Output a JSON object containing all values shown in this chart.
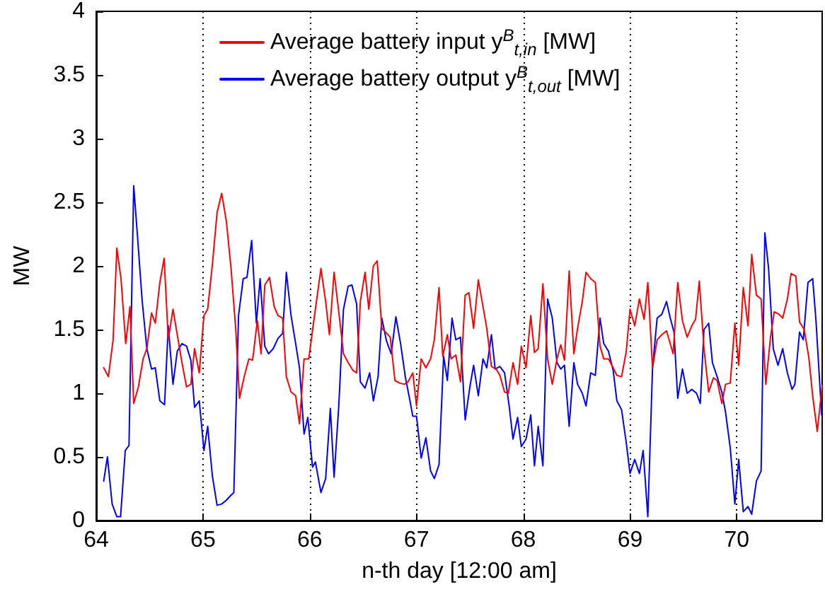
{
  "chart_data": {
    "type": "line",
    "xlabel": "n-th day [12:00 am]",
    "ylabel": "MW",
    "xlim": [
      64,
      70.8
    ],
    "ylim": [
      0,
      4
    ],
    "xticks": [
      64,
      65,
      66,
      67,
      68,
      69,
      70
    ],
    "yticks": [
      0,
      0.5,
      1,
      1.5,
      2,
      2.5,
      3,
      3.5,
      4
    ],
    "grid": "x",
    "legend": "top",
    "series": [
      {
        "name": "Average battery input y$^{B}$$_{t,in}$ [MW]",
        "color": "#ff0000",
        "x": [
          64.07,
          64.114,
          64.158,
          64.193,
          64.232,
          64.276,
          64.316,
          64.351,
          64.395,
          64.439,
          64.474,
          64.518,
          64.553,
          64.596,
          64.636,
          64.675,
          64.719,
          64.759,
          64.803,
          64.846,
          64.886,
          64.921,
          64.965,
          65.009,
          65.044,
          65.088,
          65.132,
          65.175,
          65.219,
          65.263,
          65.307,
          65.342,
          65.386,
          65.43,
          65.465,
          65.509,
          65.544,
          65.579,
          65.623,
          65.667,
          65.702,
          65.746,
          65.781,
          65.825,
          65.868,
          65.904,
          65.947,
          65.991,
          66.035,
          66.105,
          66.149,
          66.184,
          66.228,
          66.272,
          66.316,
          66.36,
          66.404,
          66.439,
          66.474,
          66.518,
          66.553,
          66.596,
          66.632,
          66.675,
          66.711,
          66.754,
          66.798,
          66.842,
          66.886,
          66.921,
          66.965,
          67,
          67.044,
          67.088,
          67.132,
          67.167,
          67.211,
          67.246,
          67.289,
          67.325,
          67.368,
          67.412,
          67.456,
          67.491,
          67.535,
          67.579,
          67.623,
          67.658,
          67.702,
          67.746,
          67.781,
          67.825,
          67.86,
          67.904,
          67.947,
          67.982,
          68.026,
          68.07,
          68.105,
          68.14,
          68.184,
          68.228,
          68.272,
          68.316,
          68.351,
          68.386,
          68.43,
          68.474,
          68.509,
          68.553,
          68.588,
          68.632,
          68.675,
          68.719,
          68.754,
          68.798,
          68.842,
          68.877,
          68.921,
          68.965,
          69,
          69.044,
          69.088,
          69.132,
          69.167,
          69.211,
          69.254,
          69.298,
          69.342,
          69.404,
          69.447,
          69.491,
          69.535,
          69.579,
          69.614,
          69.649,
          69.693,
          69.737,
          69.781,
          69.816,
          69.86,
          69.895,
          69.939,
          69.982,
          70.018,
          70.061,
          70.105,
          70.14,
          70.184,
          70.228,
          70.272,
          70.316,
          70.351,
          70.395,
          70.43,
          70.474,
          70.509,
          70.553,
          70.588,
          70.632,
          70.675,
          70.711,
          70.754,
          70.8
        ],
        "values": [
          1.2,
          1.13,
          1.42,
          2.14,
          1.9,
          1.39,
          1.68,
          0.92,
          1.05,
          1.27,
          1.35,
          1.63,
          1.55,
          1.87,
          2.06,
          1.42,
          1.66,
          1.46,
          1.24,
          1.05,
          1.07,
          1.35,
          1.16,
          1.61,
          1.66,
          2.01,
          2.42,
          2.57,
          2.35,
          1.98,
          1.5,
          0.96,
          1.13,
          1.27,
          1.26,
          1.57,
          1.31,
          1.85,
          1.91,
          1.68,
          1.61,
          1.59,
          1.13,
          1.01,
          0.98,
          0.76,
          1.27,
          1.27,
          1.55,
          1.98,
          1.72,
          1.46,
          1.95,
          1.64,
          1.31,
          1.24,
          1.18,
          1.16,
          1.72,
          1.95,
          1.66,
          2,
          2.04,
          1.51,
          1.48,
          1.44,
          1.1,
          1.08,
          1.07,
          1.09,
          1.16,
          0.9,
          1.27,
          1.2,
          1.27,
          1.42,
          1.83,
          1.29,
          1.46,
          1.27,
          1.3,
          1.09,
          1.77,
          1.79,
          1.51,
          1.89,
          1.68,
          1.51,
          1.21,
          1.19,
          1.14,
          1.01,
          1,
          1.24,
          1.07,
          1.37,
          1.2,
          1.61,
          1.32,
          1.35,
          1.86,
          1.27,
          1.07,
          1.27,
          1.38,
          1.26,
          1.96,
          1.31,
          1.51,
          1.72,
          1.95,
          1.9,
          1.87,
          1.37,
          1.27,
          1.27,
          1.2,
          1.14,
          1.13,
          1.33,
          1.66,
          1.53,
          1.74,
          1.58,
          1.87,
          1.2,
          1.42,
          1.46,
          1.49,
          1.31,
          1.87,
          1.57,
          1.44,
          1.53,
          1.58,
          1.88,
          1.35,
          1.01,
          1.12,
          1.1,
          0.92,
          1.07,
          1.08,
          1.55,
          1.22,
          1.83,
          1.53,
          2.09,
          1.77,
          1.74,
          1.07,
          1.44,
          1.64,
          1.62,
          1.59,
          1.74,
          1.94,
          1.92,
          1.56,
          1.5,
          1.28,
          0.98,
          0.7,
          1.06
        ]
      },
      {
        "name": "Average battery output y$^{B}$$_{t,out}$ [MW]",
        "color": "#0000ff",
        "x": [
          64.07,
          64.105,
          64.149,
          64.193,
          64.228,
          64.272,
          64.307,
          64.351,
          64.386,
          64.43,
          64.474,
          64.518,
          64.553,
          64.596,
          64.64,
          64.675,
          64.719,
          64.759,
          64.803,
          64.846,
          64.886,
          64.921,
          64.965,
          65.009,
          65.044,
          65.088,
          65.132,
          65.175,
          65.219,
          65.263,
          65.289,
          65.333,
          65.377,
          65.412,
          65.456,
          65.5,
          65.535,
          65.579,
          65.614,
          65.658,
          65.702,
          65.746,
          65.781,
          65.825,
          65.868,
          65.904,
          65.947,
          65.982,
          66.026,
          66.053,
          66.105,
          66.149,
          66.193,
          66.228,
          66.272,
          66.316,
          66.36,
          66.395,
          66.439,
          66.474,
          66.518,
          66.561,
          66.596,
          66.64,
          66.675,
          66.719,
          66.763,
          66.807,
          66.851,
          66.895,
          66.939,
          66.965,
          67,
          67.044,
          67.088,
          67.132,
          67.167,
          67.211,
          67.254,
          67.289,
          67.333,
          67.368,
          67.412,
          67.456,
          67.5,
          67.535,
          67.579,
          67.623,
          67.658,
          67.702,
          67.737,
          67.781,
          67.825,
          67.868,
          67.904,
          67.947,
          67.982,
          68.026,
          68.07,
          68.105,
          68.14,
          68.184,
          68.228,
          68.272,
          68.316,
          68.351,
          68.386,
          68.43,
          68.474,
          68.509,
          68.553,
          68.588,
          68.632,
          68.675,
          68.719,
          68.754,
          68.798,
          68.842,
          68.877,
          68.921,
          68.965,
          69,
          69.044,
          69.088,
          69.123,
          69.167,
          69.211,
          69.254,
          69.298,
          69.342,
          69.377,
          69.412,
          69.447,
          69.491,
          69.535,
          69.579,
          69.623,
          69.658,
          69.693,
          69.737,
          69.772,
          69.816,
          69.86,
          69.895,
          69.939,
          69.982,
          70.018,
          70.061,
          70.105,
          70.14,
          70.184,
          70.228,
          70.263,
          70.298,
          70.342,
          70.386,
          70.43,
          70.474,
          70.518,
          70.544,
          70.588,
          70.623,
          70.667,
          70.711,
          70.742,
          70.795
        ],
        "values": [
          0.31,
          0.5,
          0.13,
          0.03,
          0.03,
          0.55,
          0.59,
          2.63,
          2.24,
          1.73,
          1.35,
          1.19,
          1.2,
          0.94,
          0.91,
          1.53,
          1.07,
          1.33,
          1.39,
          1.37,
          1.26,
          0.89,
          0.94,
          0.55,
          0.74,
          0.35,
          0.12,
          0.13,
          0.16,
          0.2,
          0.22,
          1.61,
          1.9,
          1.91,
          2.2,
          1.55,
          1.9,
          1.37,
          1.31,
          1.35,
          1.43,
          1.47,
          1.95,
          1.61,
          1.39,
          1.2,
          0.68,
          0.81,
          0.42,
          0.46,
          0.22,
          0.33,
          0.88,
          0.34,
          0.9,
          1.66,
          1.84,
          1.85,
          1.7,
          1.09,
          1.04,
          1.16,
          0.94,
          1.13,
          1.59,
          1.41,
          1.31,
          1.6,
          1.39,
          1.13,
          0.94,
          0.82,
          0.82,
          0.49,
          0.65,
          0.39,
          0.33,
          0.44,
          1.29,
          1.1,
          1.59,
          1.42,
          1.44,
          0.79,
          1.05,
          1.22,
          0.98,
          1.27,
          1.2,
          1.46,
          1.19,
          1.21,
          1.16,
          0.9,
          0.64,
          0.81,
          0.58,
          0.64,
          0.83,
          0.43,
          0.74,
          0.43,
          1.74,
          1.59,
          1.24,
          1.19,
          1.22,
          0.74,
          1.24,
          1.07,
          1,
          0.9,
          1.16,
          1.14,
          1.59,
          1.39,
          1.33,
          1.18,
          0.94,
          0.87,
          0.61,
          0.37,
          0.48,
          0.37,
          0.55,
          0.03,
          1.2,
          1.59,
          1.62,
          1.72,
          1.59,
          1.48,
          0.96,
          1.19,
          1,
          1.03,
          1,
          0.92,
          1.5,
          1.55,
          1.24,
          1.13,
          1.01,
          0.85,
          0.57,
          0.13,
          0.48,
          0.07,
          0.11,
          0.05,
          0.31,
          0.39,
          2.26,
          1.98,
          1.35,
          1.22,
          1.35,
          1.16,
          1.03,
          1.07,
          1.48,
          1.42,
          1.87,
          1.9,
          1.57,
          0.83
        ]
      }
    ]
  }
}
